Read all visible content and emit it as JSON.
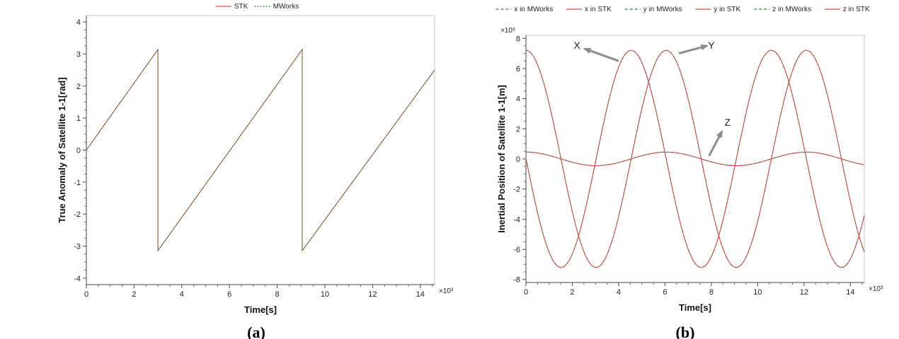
{
  "chart_data": [
    {
      "type": "line",
      "panel_label": "(a)",
      "xlabel": "Time[s]",
      "ylabel": "True Anomaly of Satellite 1-1[rad]",
      "x_multiplier": "×10³",
      "xlim": [
        0,
        14.6
      ],
      "ylim": [
        -4.2,
        4.2
      ],
      "xticks": [
        0,
        2,
        4,
        6,
        8,
        10,
        12,
        14
      ],
      "yticks": [
        -4,
        -3,
        -2,
        -1,
        0,
        1,
        2,
        3,
        4
      ],
      "grid": false,
      "legend_position": "top-center",
      "series": [
        {
          "name": "STK",
          "color": "#d9534f",
          "dash": "solid",
          "x": [
            0,
            3.0,
            3.0,
            9.05,
            9.05,
            14.6
          ],
          "y": [
            0,
            3.14,
            -3.14,
            3.14,
            -3.14,
            2.5
          ]
        },
        {
          "name": "MWorks",
          "color": "#2e7d32",
          "dash": "dotted",
          "x": [
            0,
            3.0,
            3.0,
            9.05,
            9.05,
            14.6
          ],
          "y": [
            0,
            3.14,
            -3.14,
            3.14,
            -3.14,
            2.5
          ]
        }
      ]
    },
    {
      "type": "line",
      "panel_label": "(b)",
      "xlabel": "Time[s]",
      "ylabel": "Inertial Position of Satellite 1-1[m]",
      "x_multiplier": "×10³",
      "y_multiplier": "×10⁶",
      "xlim": [
        0,
        14.6
      ],
      "ylim": [
        -8.2,
        8.2
      ],
      "xticks": [
        0,
        2,
        4,
        6,
        8,
        10,
        12,
        14
      ],
      "yticks": [
        -8,
        -6,
        -4,
        -2,
        0,
        2,
        4,
        6,
        8
      ],
      "grid": false,
      "legend_position": "top",
      "annotations": [
        {
          "text": "X",
          "x": 2.2,
          "y": 7.3
        },
        {
          "text": "Y",
          "x": 8.0,
          "y": 7.3
        },
        {
          "text": "Z",
          "x": 8.7,
          "y": 2.2
        }
      ],
      "period": 6.05,
      "components": [
        {
          "axis": "x",
          "amplitude": 7.2,
          "peak_time": 0
        },
        {
          "axis": "y",
          "amplitude": 7.2,
          "peak_time": 4.54
        },
        {
          "axis": "z",
          "amplitude": 0.45,
          "peak_time": 0
        }
      ],
      "series": [
        {
          "name": "x in MWorks",
          "color": "#2e7d32",
          "dash": "dashed",
          "component": "x"
        },
        {
          "name": "x in STK",
          "color": "#c0504d",
          "dash": "solid",
          "component": "x"
        },
        {
          "name": "y in MWorks",
          "color": "#2e7d32",
          "dash": "dashed",
          "component": "y"
        },
        {
          "name": "y in STK",
          "color": "#c0504d",
          "dash": "solid",
          "component": "y"
        },
        {
          "name": "z in MWorks",
          "color": "#2e7d32",
          "dash": "dashed",
          "component": "z"
        },
        {
          "name": "z in STK",
          "color": "#c0504d",
          "dash": "solid",
          "component": "z"
        }
      ]
    }
  ]
}
